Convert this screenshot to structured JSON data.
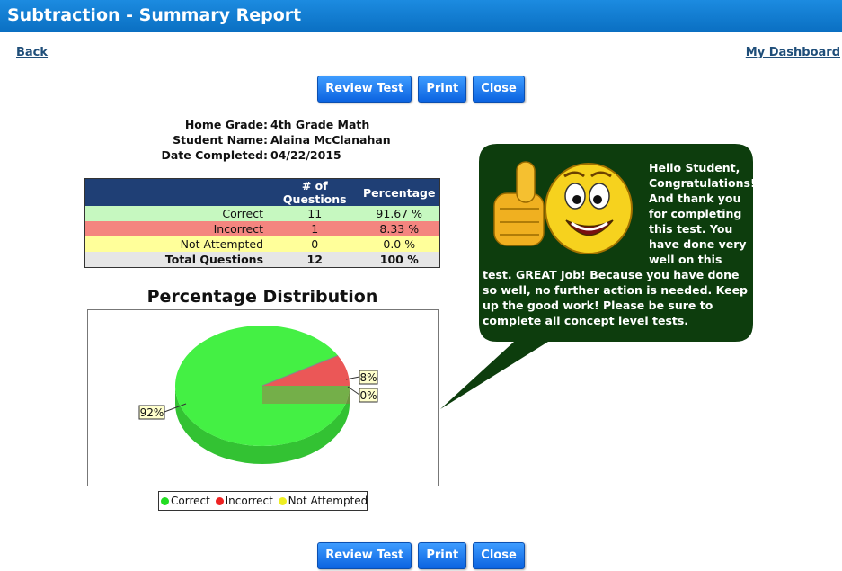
{
  "header": {
    "title": "Subtraction - Summary Report"
  },
  "nav": {
    "back": "Back",
    "dashboard": "My Dashboard"
  },
  "buttons": {
    "review": "Review Test",
    "print": "Print",
    "close": "Close"
  },
  "info": {
    "home_grade_label": "Home Grade:",
    "home_grade": "4th Grade Math",
    "student_name_label": "Student Name:",
    "student_name": "Alaina McClanahan",
    "date_label": "Date Completed:",
    "date": "04/22/2015"
  },
  "summary_table": {
    "headers": [
      "",
      "# of Questions",
      "Percentage"
    ],
    "rows": [
      {
        "label": "Correct",
        "count": "11",
        "percent": "91.67 %"
      },
      {
        "label": "Incorrect",
        "count": "1",
        "percent": "8.33 %"
      },
      {
        "label": "Not Attempted",
        "count": "0",
        "percent": "0.0 %"
      },
      {
        "label": "Total Questions",
        "count": "12",
        "percent": "100 %"
      }
    ]
  },
  "chart_data": {
    "type": "pie",
    "title": "Percentage Distribution",
    "categories": [
      "Correct",
      "Incorrect",
      "Not Attempted"
    ],
    "values": [
      91.67,
      8.33,
      0.0
    ],
    "data_labels": [
      "92%",
      "8%",
      "0%"
    ],
    "colors": [
      "#44f044",
      "#ee3333",
      "#eeee33"
    ],
    "legend": "bottom"
  },
  "message": {
    "text_top": "Hello Student, Congratulations! And thank you for completing this test. You have done very well on this",
    "text_bottom": "test. GREAT Job! Because you have done so well, no further action is needed. Keep up the good work! Please be sure to complete",
    "link": "all concept level tests",
    "end": "."
  },
  "colors": {
    "title_bar": "#0a6fc2",
    "table_header": "#1f3f75",
    "bubble": "#0d3d0d"
  }
}
